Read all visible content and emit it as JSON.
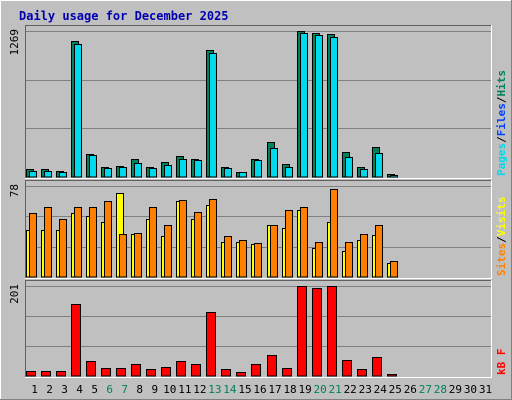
{
  "title": "Daily usage for December 2025",
  "colors": {
    "background": "#c0c0c0",
    "title": "#0000b0",
    "hits": "#00805c",
    "files": "#0040ff",
    "pages": "#00d8ec",
    "visits": "#ffff00",
    "sites": "#ff8000",
    "kbytes": "#ff0000",
    "weekend_day": "#00805c",
    "weekday_day": "#000000",
    "gridline": "#808080"
  },
  "chart_data": {
    "type": "bar",
    "categories": [
      "1",
      "2",
      "3",
      "4",
      "5",
      "6",
      "7",
      "8",
      "9",
      "10",
      "11",
      "12",
      "13",
      "14",
      "15",
      "16",
      "17",
      "18",
      "19",
      "20",
      "21",
      "22",
      "23",
      "24",
      "25",
      "26",
      "27",
      "28",
      "29",
      "30",
      "31"
    ],
    "weekend_days": [
      "6",
      "7",
      "13",
      "14",
      "20",
      "21",
      "27",
      "28"
    ],
    "panels": [
      {
        "id": "top",
        "ymax_label": "1269",
        "ymax": 1269,
        "series": [
          {
            "name": "Hits",
            "color": "#00805c",
            "values": [
              70,
              70,
              55,
              1180,
              200,
              90,
              95,
              160,
              90,
              130,
              185,
              160,
              1100,
              90,
              45,
              160,
              300,
              110,
              1269,
              1250,
              1240,
              220,
              90,
              260,
              30,
              0,
              0,
              0,
              0,
              0,
              0
            ]
          },
          {
            "name": "Files",
            "color": "#0040ff",
            "values": [
              0,
              0,
              0,
              0,
              0,
              0,
              0,
              0,
              0,
              0,
              0,
              0,
              0,
              0,
              0,
              0,
              0,
              0,
              0,
              0,
              0,
              0,
              0,
              0,
              0,
              0,
              0,
              0,
              0,
              0,
              0
            ]
          },
          {
            "name": "Pages",
            "color": "#00d8ec",
            "values": [
              55,
              50,
              40,
              1160,
              195,
              80,
              90,
              120,
              80,
              100,
              160,
              150,
              1080,
              80,
              40,
              150,
              250,
              90,
              1250,
              1230,
              1220,
              170,
              70,
              210,
              15,
              0,
              0,
              0,
              0,
              0,
              0
            ]
          }
        ],
        "legend": [
          {
            "label": "Pages",
            "color": "#00d8ec"
          },
          {
            "label": "Files",
            "color": "#0040ff"
          },
          {
            "label": "Hits",
            "color": "#00805c"
          }
        ]
      },
      {
        "id": "middle",
        "ymax_label": "78",
        "ymax": 78,
        "series": [
          {
            "name": "Visits",
            "color": "#ffff00",
            "values": [
              40,
              40,
              40,
              55,
              52,
              47,
              72,
              37,
              50,
              35,
              65,
              50,
              62,
              30,
              30,
              28,
              45,
              42,
              57,
              25,
              47,
              22,
              32,
              36,
              12,
              0,
              0,
              0,
              0,
              0,
              0
            ]
          },
          {
            "name": "Sites",
            "color": "#ff8000",
            "values": [
              55,
              60,
              50,
              60,
              60,
              65,
              37,
              38,
              60,
              45,
              66,
              56,
              67,
              35,
              32,
              29,
              45,
              57,
              60,
              30,
              75,
              30,
              37,
              45,
              14,
              0,
              0,
              0,
              0,
              0,
              0
            ]
          }
        ],
        "legend": [
          {
            "label": "Sites",
            "color": "#ff8000"
          },
          {
            "label": "Visits",
            "color": "#ffff00"
          }
        ]
      },
      {
        "id": "bottom",
        "ymax_label": "201",
        "ymax": 201,
        "series": [
          {
            "name": "KBytes",
            "color": "#ff0000",
            "values": [
              12,
              12,
              12,
              160,
              33,
              17,
              18,
              26,
              15,
              20,
              34,
              26,
              144,
              15,
              8,
              26,
              46,
              17,
              201,
              196,
              201,
              35,
              15,
              43,
              5,
              0,
              0,
              0,
              0,
              0,
              0
            ]
          }
        ],
        "legend": [
          {
            "label": "kB F",
            "color": "#ff0000"
          }
        ]
      }
    ]
  }
}
